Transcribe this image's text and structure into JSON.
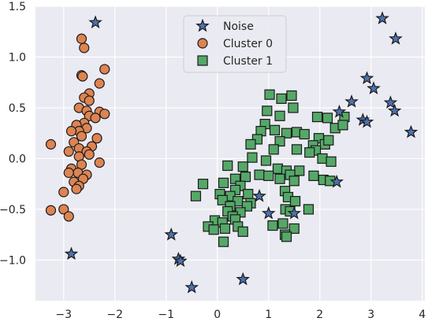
{
  "chart_data": {
    "type": "scatter",
    "xlim": [
      -3.55,
      4.05
    ],
    "ylim": [
      -1.4,
      1.5
    ],
    "x_ticks": [
      -3,
      -2,
      -1,
      0,
      1,
      2,
      3,
      4
    ],
    "x_tick_labels": [
      "−3",
      "−2",
      "−1",
      "0",
      "1",
      "2",
      "3",
      "4"
    ],
    "y_ticks": [
      -1.0,
      -0.5,
      0.0,
      0.5,
      1.0,
      1.5
    ],
    "y_tick_labels": [
      "−1.0",
      "−0.5",
      "0.0",
      "0.5",
      "1.0",
      "1.5"
    ],
    "grid": true,
    "legend_position": "top-center",
    "colors": {
      "background": "#eaeaf2",
      "grid": "#ffffff",
      "noise": "#4c72b0",
      "cluster0": "#dd8452",
      "cluster1": "#55a868",
      "edge": "#1a1a1a"
    },
    "series": [
      {
        "name": "Noise",
        "marker": "star",
        "points": [
          [
            -2.38,
            1.34
          ],
          [
            3.22,
            1.38
          ],
          [
            3.48,
            1.18
          ],
          [
            2.92,
            0.79
          ],
          [
            3.05,
            0.69
          ],
          [
            2.62,
            0.56
          ],
          [
            3.38,
            0.55
          ],
          [
            3.46,
            0.47
          ],
          [
            2.38,
            0.46
          ],
          [
            2.84,
            0.38
          ],
          [
            2.92,
            0.36
          ],
          [
            3.78,
            0.26
          ],
          [
            2.33,
            -0.23
          ],
          [
            0.82,
            -0.37
          ],
          [
            1.5,
            -0.54
          ],
          [
            1.0,
            -0.54
          ],
          [
            -2.85,
            -0.94
          ],
          [
            -0.9,
            -0.75
          ],
          [
            -0.76,
            -0.99
          ],
          [
            -0.72,
            -1.01
          ],
          [
            0.5,
            -1.19
          ],
          [
            -0.5,
            -1.27
          ]
        ]
      },
      {
        "name": "Cluster 0",
        "marker": "circle",
        "points": [
          [
            -2.65,
            1.18
          ],
          [
            -2.6,
            1.09
          ],
          [
            -2.2,
            0.88
          ],
          [
            -2.65,
            0.82
          ],
          [
            -2.63,
            0.81
          ],
          [
            -2.3,
            0.74
          ],
          [
            -2.5,
            0.64
          ],
          [
            -2.6,
            0.6
          ],
          [
            -2.5,
            0.57
          ],
          [
            -2.7,
            0.5
          ],
          [
            -2.55,
            0.47
          ],
          [
            -2.3,
            0.46
          ],
          [
            -2.2,
            0.44
          ],
          [
            -2.5,
            0.42
          ],
          [
            -2.38,
            0.4
          ],
          [
            -2.6,
            0.35
          ],
          [
            -2.75,
            0.33
          ],
          [
            -2.55,
            0.3
          ],
          [
            -2.7,
            0.27
          ],
          [
            -2.85,
            0.27
          ],
          [
            -2.65,
            0.22
          ],
          [
            -2.35,
            0.2
          ],
          [
            -2.8,
            0.16
          ],
          [
            -2.45,
            0.12
          ],
          [
            -2.7,
            0.1
          ],
          [
            -3.25,
            0.14
          ],
          [
            -2.9,
            0.07
          ],
          [
            -2.55,
            0.07
          ],
          [
            -2.5,
            0.04
          ],
          [
            -2.7,
            0.02
          ],
          [
            -2.3,
            -0.04
          ],
          [
            -2.65,
            -0.06
          ],
          [
            -2.85,
            -0.1
          ],
          [
            -2.72,
            -0.14
          ],
          [
            -2.9,
            -0.14
          ],
          [
            -2.55,
            -0.16
          ],
          [
            -2.62,
            -0.2
          ],
          [
            -2.8,
            -0.23
          ],
          [
            -2.7,
            -0.27
          ],
          [
            -2.75,
            -0.3
          ],
          [
            -3.0,
            -0.33
          ],
          [
            -3.25,
            -0.51
          ],
          [
            -3.0,
            -0.5
          ],
          [
            -2.9,
            -0.57
          ]
        ]
      },
      {
        "name": "Cluster 1",
        "marker": "square",
        "points": [
          [
            1.02,
            0.63
          ],
          [
            1.45,
            0.62
          ],
          [
            1.25,
            0.59
          ],
          [
            1.48,
            0.5
          ],
          [
            0.97,
            0.47
          ],
          [
            1.22,
            0.42
          ],
          [
            1.95,
            0.41
          ],
          [
            2.15,
            0.4
          ],
          [
            2.48,
            0.41
          ],
          [
            0.93,
            0.34
          ],
          [
            1.12,
            0.28
          ],
          [
            1.55,
            0.26
          ],
          [
            1.7,
            0.24
          ],
          [
            1.35,
            0.25
          ],
          [
            2.3,
            0.3
          ],
          [
            2.45,
            0.33
          ],
          [
            0.85,
            0.27
          ],
          [
            0.78,
            0.19
          ],
          [
            1.22,
            0.17
          ],
          [
            1.98,
            0.2
          ],
          [
            2.1,
            0.14
          ],
          [
            1.87,
            0.13
          ],
          [
            2.17,
            0.18
          ],
          [
            0.65,
            0.14
          ],
          [
            1.55,
            0.09
          ],
          [
            1.92,
            0.08
          ],
          [
            1.1,
            0.09
          ],
          [
            2.05,
            0.0
          ],
          [
            1.8,
            0.06
          ],
          [
            0.95,
            -0.02
          ],
          [
            0.68,
            0.01
          ],
          [
            2.22,
            -0.03
          ],
          [
            0.2,
            -0.07
          ],
          [
            0.5,
            -0.08
          ],
          [
            1.18,
            -0.1
          ],
          [
            1.6,
            -0.12
          ],
          [
            1.35,
            -0.12
          ],
          [
            0.82,
            -0.16
          ],
          [
            1.0,
            -0.17
          ],
          [
            1.42,
            -0.16
          ],
          [
            1.22,
            -0.2
          ],
          [
            1.88,
            -0.17
          ],
          [
            0.55,
            -0.18
          ],
          [
            0.35,
            -0.2
          ],
          [
            2.07,
            -0.21
          ],
          [
            2.2,
            -0.22
          ],
          [
            1.5,
            -0.22
          ],
          [
            0.12,
            -0.24
          ],
          [
            -0.28,
            -0.25
          ],
          [
            0.45,
            -0.27
          ],
          [
            0.35,
            -0.31
          ],
          [
            1.32,
            -0.32
          ],
          [
            0.05,
            -0.35
          ],
          [
            0.6,
            -0.35
          ],
          [
            1.38,
            -0.38
          ],
          [
            -0.42,
            -0.37
          ],
          [
            0.25,
            -0.37
          ],
          [
            0.1,
            -0.41
          ],
          [
            0.4,
            -0.42
          ],
          [
            1.52,
            -0.42
          ],
          [
            0.65,
            -0.44
          ],
          [
            0.25,
            -0.47
          ],
          [
            0.58,
            -0.47
          ],
          [
            0.2,
            -0.52
          ],
          [
            1.33,
            -0.5
          ],
          [
            0.45,
            -0.53
          ],
          [
            1.78,
            -0.5
          ],
          [
            0.3,
            -0.57
          ],
          [
            1.42,
            -0.52
          ],
          [
            -0.05,
            -0.61
          ],
          [
            0.1,
            -0.63
          ],
          [
            0.35,
            -0.6
          ],
          [
            1.28,
            -0.64
          ],
          [
            -0.18,
            -0.67
          ],
          [
            0.4,
            -0.67
          ],
          [
            -0.07,
            -0.7
          ],
          [
            0.15,
            -0.69
          ],
          [
            1.08,
            -0.66
          ],
          [
            1.5,
            -0.69
          ],
          [
            0.5,
            -0.72
          ],
          [
            1.32,
            -0.75
          ],
          [
            1.35,
            -0.77
          ],
          [
            0.12,
            -0.82
          ]
        ]
      }
    ]
  }
}
